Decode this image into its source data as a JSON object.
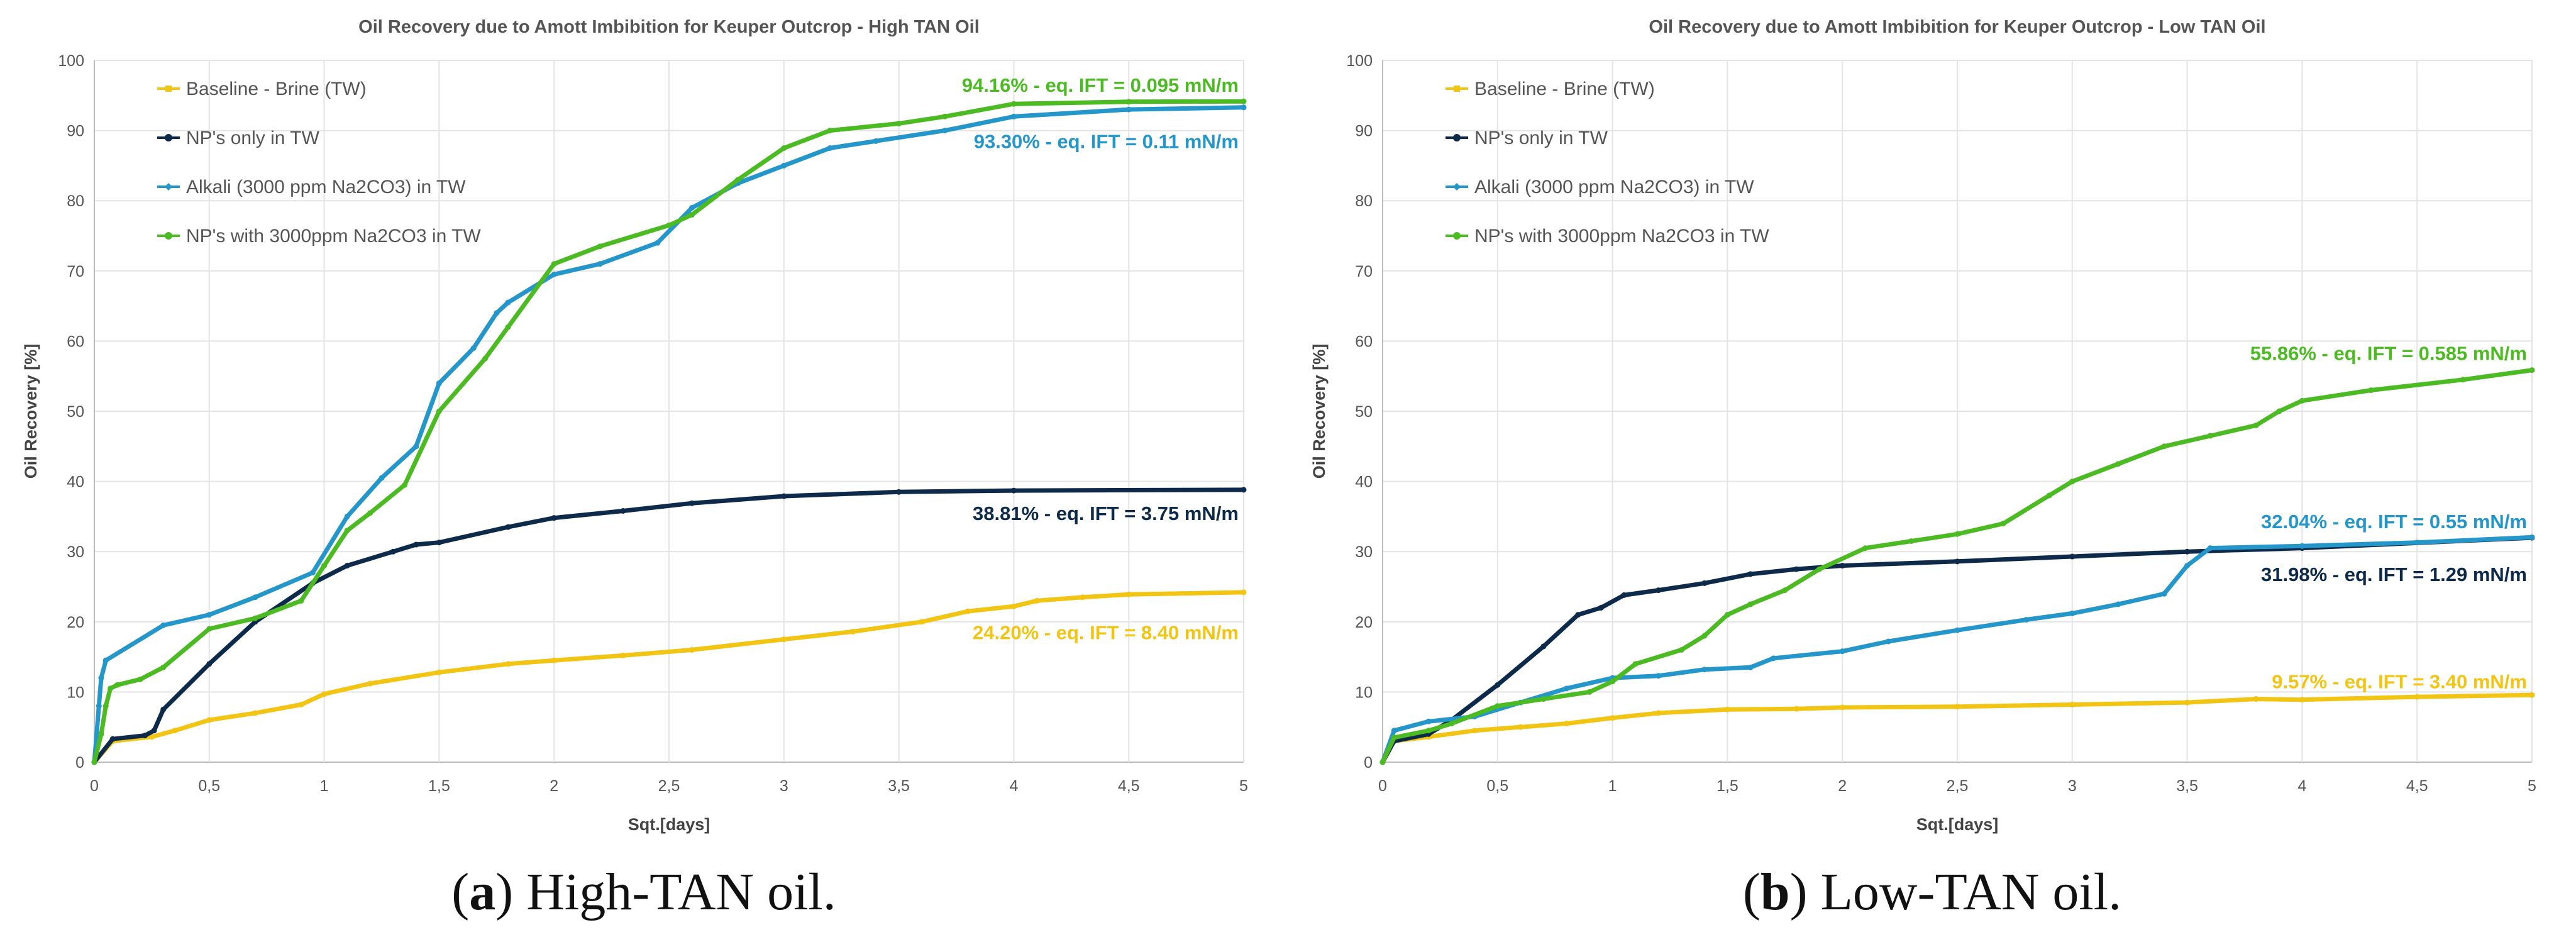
{
  "chart_data": [
    {
      "type": "line",
      "title": "Oil Recovery due to Amott Imbibition for Keuper Outcrop - High TAN Oil",
      "xlabel": "Sqt.[days]",
      "ylabel": "Oil Recovery [%]",
      "xlim": [
        0,
        5
      ],
      "ylim": [
        0,
        100
      ],
      "xticks": [
        "0",
        "0,5",
        "1",
        "1,5",
        "2",
        "2,5",
        "3",
        "3,5",
        "4",
        "4,5",
        "5"
      ],
      "yticks": [
        "0",
        "10",
        "20",
        "30",
        "40",
        "50",
        "60",
        "70",
        "80",
        "90",
        "100"
      ],
      "caption_letter": "a",
      "caption_text": "High-TAN oil.",
      "series": [
        {
          "name": "Baseline - Brine (TW)",
          "color": "#F2C414",
          "marker": "square",
          "x": [
            0,
            0.08,
            0.25,
            0.35,
            0.5,
            0.7,
            0.9,
            1.0,
            1.2,
            1.5,
            1.8,
            2.0,
            2.3,
            2.6,
            3.0,
            3.3,
            3.6,
            3.8,
            4.0,
            4.1,
            4.3,
            4.5,
            5.0
          ],
          "y": [
            0,
            3.0,
            3.6,
            4.5,
            6.0,
            7.0,
            8.2,
            9.7,
            11.2,
            12.8,
            14.0,
            14.5,
            15.2,
            16.0,
            17.5,
            18.6,
            20.0,
            21.5,
            22.2,
            23.0,
            23.5,
            23.9,
            24.2
          ]
        },
        {
          "name": "NP's only in TW",
          "color": "#0E2A4A",
          "marker": "circle",
          "x": [
            0,
            0.08,
            0.22,
            0.26,
            0.3,
            0.5,
            0.7,
            0.95,
            1.1,
            1.3,
            1.4,
            1.5,
            1.8,
            2.0,
            2.3,
            2.6,
            3.0,
            3.5,
            4.0,
            5.0
          ],
          "y": [
            0,
            3.3,
            3.8,
            4.5,
            7.5,
            14.0,
            20.0,
            25.5,
            28.0,
            30.0,
            31.0,
            31.3,
            33.5,
            34.8,
            35.8,
            36.9,
            37.9,
            38.5,
            38.7,
            38.81
          ]
        },
        {
          "name": "Alkali (3000 ppm Na2CO3) in TW",
          "color": "#2596C9",
          "marker": "diamond",
          "x": [
            0,
            0.02,
            0.03,
            0.05,
            0.3,
            0.5,
            0.7,
            0.95,
            1.1,
            1.25,
            1.4,
            1.5,
            1.65,
            1.75,
            1.8,
            2.0,
            2.2,
            2.45,
            2.6,
            2.8,
            3.0,
            3.2,
            3.4,
            3.7,
            4.0,
            4.5,
            5.0
          ],
          "y": [
            0,
            8.0,
            12.0,
            14.5,
            19.5,
            21.0,
            23.5,
            27.0,
            35.0,
            40.5,
            45.0,
            54.0,
            59.0,
            64.0,
            65.5,
            69.5,
            71.0,
            74.0,
            79.0,
            82.5,
            85.0,
            87.5,
            88.5,
            90.0,
            92.0,
            93.0,
            93.3
          ]
        },
        {
          "name": "NP's with 3000ppm Na2CO3 in TW",
          "color": "#4CBB23",
          "marker": "circle",
          "x": [
            0,
            0.03,
            0.05,
            0.07,
            0.1,
            0.2,
            0.3,
            0.5,
            0.7,
            0.9,
            1.0,
            1.1,
            1.2,
            1.35,
            1.5,
            1.7,
            1.8,
            2.0,
            2.2,
            2.5,
            2.6,
            2.8,
            3.0,
            3.2,
            3.5,
            3.7,
            4.0,
            4.5,
            5.0
          ],
          "y": [
            0,
            4.0,
            8.0,
            10.5,
            11.0,
            11.8,
            13.5,
            19.0,
            20.5,
            23.0,
            28.0,
            33.0,
            35.5,
            39.5,
            50.0,
            57.5,
            62.0,
            71.0,
            73.5,
            76.5,
            78.0,
            83.0,
            87.5,
            90.0,
            91.0,
            92.0,
            93.8,
            94.1,
            94.16
          ]
        }
      ],
      "annotations": [
        {
          "text": "94.16% - eq. IFT = 0.095 mN/m",
          "color": "#4CBB23",
          "x": 5.0,
          "y": 96.5
        },
        {
          "text": "93.30% - eq. IFT = 0.11 mN/m",
          "color": "#2596C9",
          "x": 5.0,
          "y": 88.5
        },
        {
          "text": "38.81% - eq. IFT = 3.75 mN/m",
          "color": "#0E2A4A",
          "x": 5.0,
          "y": 35.5
        },
        {
          "text": "24.20% - eq. IFT = 8.40 mN/m",
          "color": "#F2C414",
          "x": 5.0,
          "y": 18.5
        }
      ]
    },
    {
      "type": "line",
      "title": "Oil Recovery due to Amott Imbibition for Keuper Outcrop - Low TAN Oil",
      "xlabel": "Sqt.[days]",
      "ylabel": "Oil Recovery [%]",
      "xlim": [
        0,
        5
      ],
      "ylim": [
        0,
        100
      ],
      "xticks": [
        "0",
        "0,5",
        "1",
        "1,5",
        "2",
        "2,5",
        "3",
        "3,5",
        "4",
        "4,5",
        "5"
      ],
      "yticks": [
        "0",
        "10",
        "20",
        "30",
        "40",
        "50",
        "60",
        "70",
        "80",
        "90",
        "100"
      ],
      "caption_letter": "b",
      "caption_text": "Low-TAN oil.",
      "series": [
        {
          "name": "Baseline - Brine (TW)",
          "color": "#F2C414",
          "marker": "square",
          "x": [
            0,
            0.05,
            0.2,
            0.4,
            0.6,
            0.8,
            1.0,
            1.2,
            1.5,
            1.8,
            2.0,
            2.5,
            3.0,
            3.5,
            3.8,
            4.0,
            4.5,
            5.0
          ],
          "y": [
            0,
            3.0,
            3.6,
            4.5,
            5.0,
            5.5,
            6.3,
            7.0,
            7.5,
            7.6,
            7.8,
            7.9,
            8.2,
            8.5,
            9.0,
            8.9,
            9.3,
            9.57
          ]
        },
        {
          "name": "NP's only in TW",
          "color": "#0E2A4A",
          "marker": "circle",
          "x": [
            0,
            0.05,
            0.2,
            0.3,
            0.5,
            0.7,
            0.85,
            0.95,
            1.05,
            1.2,
            1.4,
            1.6,
            1.8,
            2.0,
            2.5,
            3.0,
            3.5,
            4.0,
            5.0
          ],
          "y": [
            0,
            3.0,
            4.0,
            6.0,
            11.0,
            16.5,
            21.0,
            22.0,
            23.8,
            24.5,
            25.5,
            26.8,
            27.5,
            28.0,
            28.6,
            29.3,
            30.0,
            30.5,
            31.98
          ]
        },
        {
          "name": "Alkali (3000 ppm Na2CO3) in TW",
          "color": "#2596C9",
          "marker": "diamond",
          "x": [
            0,
            0.05,
            0.2,
            0.4,
            0.6,
            0.8,
            1.0,
            1.2,
            1.4,
            1.6,
            1.7,
            2.0,
            2.2,
            2.5,
            2.8,
            3.0,
            3.2,
            3.4,
            3.5,
            3.6,
            4.0,
            4.5,
            5.0
          ],
          "y": [
            0,
            4.5,
            5.8,
            6.5,
            8.5,
            10.5,
            12.0,
            12.3,
            13.2,
            13.5,
            14.8,
            15.8,
            17.2,
            18.8,
            20.3,
            21.2,
            22.5,
            24.0,
            28.0,
            30.5,
            30.8,
            31.3,
            32.04
          ]
        },
        {
          "name": "NP's with 3000ppm Na2CO3 in TW",
          "color": "#4CBB23",
          "marker": "circle",
          "x": [
            0,
            0.05,
            0.2,
            0.3,
            0.5,
            0.7,
            0.9,
            1.0,
            1.1,
            1.3,
            1.4,
            1.5,
            1.6,
            1.75,
            1.9,
            2.1,
            2.3,
            2.5,
            2.7,
            2.9,
            3.0,
            3.2,
            3.4,
            3.6,
            3.8,
            3.9,
            4.0,
            4.3,
            4.7,
            5.0
          ],
          "y": [
            0,
            3.5,
            4.5,
            5.5,
            8.0,
            9.0,
            10.0,
            11.5,
            14.0,
            16.0,
            18.0,
            21.0,
            22.5,
            24.5,
            27.5,
            30.5,
            31.5,
            32.5,
            34.0,
            38.0,
            40.0,
            42.5,
            45.0,
            46.5,
            48.0,
            50.0,
            51.5,
            53.0,
            54.5,
            55.86
          ]
        }
      ],
      "annotations": [
        {
          "text": "55.86% - eq. IFT = 0.585 mN/m",
          "color": "#4CBB23",
          "x": 5.0,
          "y": 58.3
        },
        {
          "text": "32.04% - eq. IFT = 0.55 mN/m",
          "color": "#2596C9",
          "x": 5.0,
          "y": 34.3
        },
        {
          "text": "31.98% - eq. IFT = 1.29 mN/m",
          "color": "#0E2A4A",
          "x": 5.0,
          "y": 26.8
        },
        {
          "text": "9.57% - eq. IFT = 3.40 mN/m",
          "color": "#F2C414",
          "x": 5.0,
          "y": 11.5
        }
      ]
    }
  ]
}
